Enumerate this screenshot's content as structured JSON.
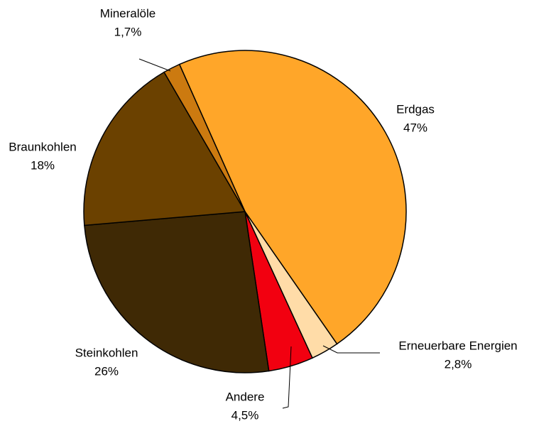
{
  "chart_data": {
    "type": "pie",
    "categories": [
      "Erdgas",
      "Erneuerbare Energien",
      "Andere",
      "Steinkohlen",
      "Braunkohlen",
      "Mineralöle"
    ],
    "values": [
      47,
      2.8,
      4.5,
      26,
      18,
      1.7
    ],
    "value_labels": [
      "47%",
      "2,8%",
      "4,5%",
      "26%",
      "18%",
      "1,7%"
    ],
    "colors": [
      "#FFA629",
      "#FFDCA8",
      "#F20010",
      "#3F2905",
      "#6B4100",
      "#CC7A10"
    ]
  }
}
